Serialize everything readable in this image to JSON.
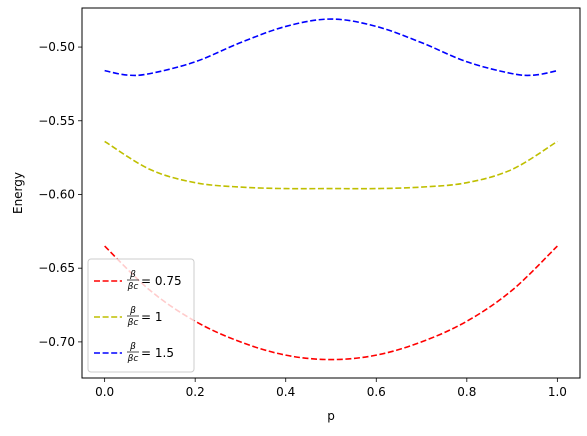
{
  "chart_data": {
    "type": "line",
    "xlabel": "p",
    "ylabel": "Energy",
    "xlim": [
      -0.05,
      1.05
    ],
    "ylim": [
      -0.7245,
      -0.4735
    ],
    "xticks": [
      0.0,
      0.2,
      0.4,
      0.6,
      0.8,
      1.0
    ],
    "xtick_labels": [
      "0.0",
      "0.2",
      "0.4",
      "0.6",
      "0.8",
      "1.0"
    ],
    "yticks": [
      -0.7,
      -0.65,
      -0.6,
      -0.55,
      -0.5
    ],
    "ytick_labels": [
      "−0.70",
      "−0.65",
      "−0.60",
      "−0.55",
      "−0.50"
    ],
    "grid": false,
    "legend_position": "lower-left",
    "legend_fraction": {
      "numerator": "β",
      "denominator": "βc"
    },
    "series": [
      {
        "name": "= 0.75",
        "color": "#ff0000",
        "linestyle": "dashed",
        "x": [
          0.0,
          0.1,
          0.2,
          0.3,
          0.4,
          0.5,
          0.6,
          0.7,
          0.8,
          0.9,
          1.0
        ],
        "values": [
          -0.635,
          -0.665,
          -0.686,
          -0.7,
          -0.709,
          -0.712,
          -0.709,
          -0.7,
          -0.686,
          -0.665,
          -0.635
        ]
      },
      {
        "name": "= 1",
        "color": "#bfbf00",
        "linestyle": "dashed",
        "x": [
          0.0,
          0.1,
          0.2,
          0.3,
          0.4,
          0.5,
          0.6,
          0.7,
          0.8,
          0.9,
          1.0
        ],
        "values": [
          -0.564,
          -0.583,
          -0.592,
          -0.595,
          -0.596,
          -0.596,
          -0.596,
          -0.595,
          -0.592,
          -0.583,
          -0.564
        ]
      },
      {
        "name": "= 1.5",
        "color": "#0000ff",
        "linestyle": "dashed",
        "x": [
          0.0,
          0.05,
          0.1,
          0.2,
          0.3,
          0.4,
          0.5,
          0.6,
          0.7,
          0.8,
          0.9,
          0.95,
          1.0
        ],
        "values": [
          -0.516,
          -0.519,
          -0.518,
          -0.51,
          -0.497,
          -0.486,
          -0.481,
          -0.486,
          -0.497,
          -0.51,
          -0.518,
          -0.519,
          -0.516
        ]
      }
    ]
  }
}
